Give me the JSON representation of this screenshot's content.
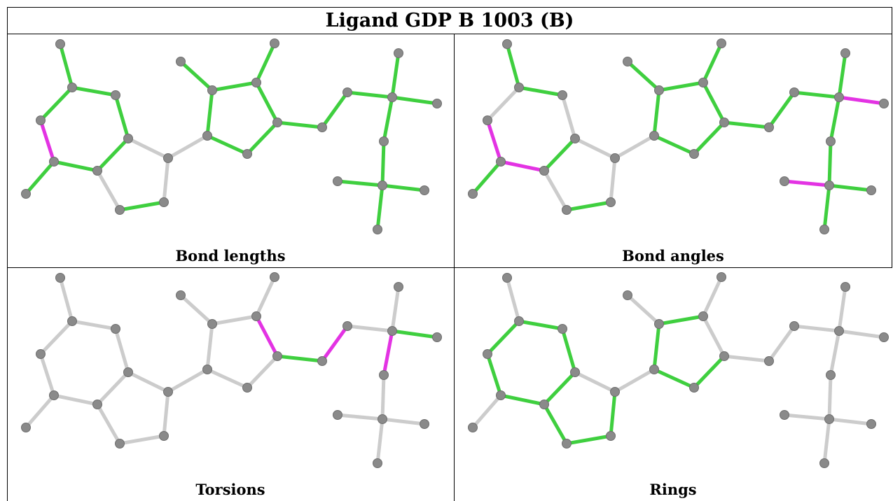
{
  "title": "Ligand GDP B 1003 (B)",
  "panels": [
    {
      "id": "bond-lengths",
      "caption": "Bond lengths"
    },
    {
      "id": "bond-angles",
      "caption": "Bond angles"
    },
    {
      "id": "torsions",
      "caption": "Torsions"
    },
    {
      "id": "rings",
      "caption": "Rings"
    }
  ],
  "colors": {
    "ok_bond": "#3fcf3f",
    "outlier_bond": "#e333e3",
    "neutral_bond": "#cccccc",
    "atom": "#8a8a8a"
  }
}
